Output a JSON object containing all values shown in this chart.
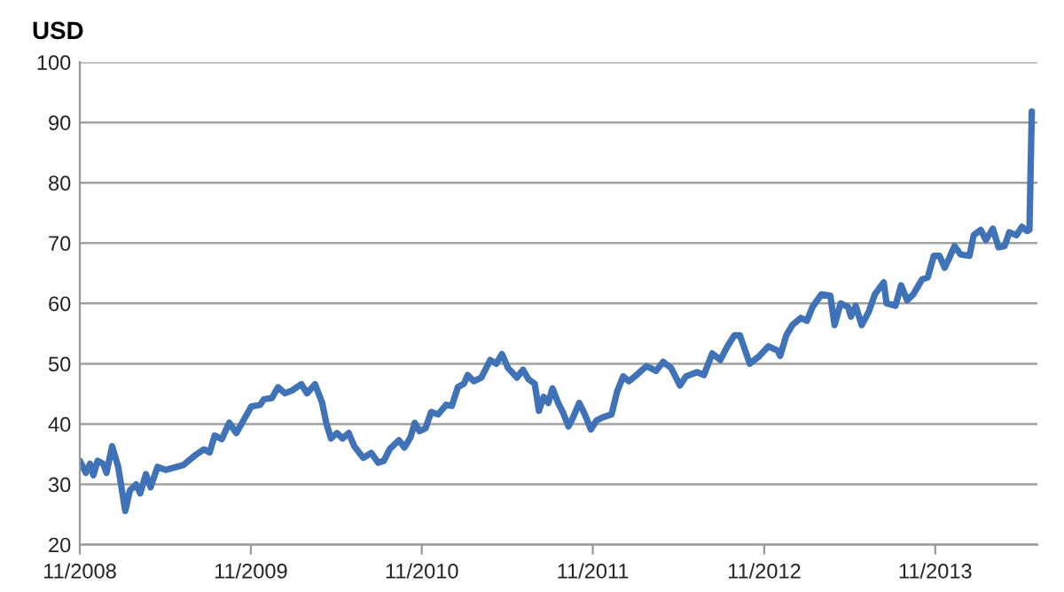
{
  "chart_data": {
    "type": "line",
    "ylabel": "USD",
    "xlim": [
      "2008-11-01",
      "2014-06-07"
    ],
    "ylim": [
      20,
      100
    ],
    "xticks": [
      {
        "value": "2008-11-01",
        "label": "11/2008"
      },
      {
        "value": "2009-11-01",
        "label": "11/2009"
      },
      {
        "value": "2010-11-01",
        "label": "11/2010"
      },
      {
        "value": "2011-11-01",
        "label": "11/2011"
      },
      {
        "value": "2012-11-01",
        "label": "11/2012"
      },
      {
        "value": "2013-11-01",
        "label": "11/2013"
      }
    ],
    "yticks": [
      20,
      30,
      40,
      50,
      60,
      70,
      80,
      90,
      100
    ],
    "grid": "y",
    "marker": "none",
    "line_style": "solid",
    "series": [
      {
        "color": "#3f72b6",
        "x": [
          "2008-11-01",
          "2008-11-14",
          "2008-11-23",
          "2008-11-30",
          "2008-12-09",
          "2008-12-21",
          "2008-12-28",
          "2009-01-09",
          "2009-01-22",
          "2009-02-06",
          "2009-02-16",
          "2009-03-01",
          "2009-03-10",
          "2009-03-22",
          "2009-04-01",
          "2009-04-16",
          "2009-05-03",
          "2009-06-10",
          "2009-07-05",
          "2009-07-24",
          "2009-08-05",
          "2009-08-16",
          "2009-08-31",
          "2009-09-16",
          "2009-10-01",
          "2009-11-02",
          "2009-11-21",
          "2009-11-29",
          "2009-12-16",
          "2009-12-29",
          "2010-01-13",
          "2010-01-29",
          "2010-02-17",
          "2010-03-01",
          "2010-03-18",
          "2010-04-02",
          "2010-04-11",
          "2010-04-21",
          "2010-05-04",
          "2010-05-16",
          "2010-05-29",
          "2010-06-10",
          "2010-06-29",
          "2010-07-16",
          "2010-07-31",
          "2010-08-12",
          "2010-08-25",
          "2010-09-13",
          "2010-09-25",
          "2010-10-08",
          "2010-10-17",
          "2010-10-27",
          "2010-11-09",
          "2010-11-21",
          "2010-12-06",
          "2010-12-23",
          "2011-01-04",
          "2011-01-17",
          "2011-01-30",
          "2011-02-07",
          "2011-02-20",
          "2011-03-08",
          "2011-03-27",
          "2011-04-09",
          "2011-04-21",
          "2011-05-04",
          "2011-05-23",
          "2011-06-05",
          "2011-06-17",
          "2011-06-30",
          "2011-07-09",
          "2011-07-19",
          "2011-07-29",
          "2011-08-07",
          "2011-08-19",
          "2011-08-30",
          "2011-09-10",
          "2011-09-20",
          "2011-10-03",
          "2011-10-15",
          "2011-10-28",
          "2011-11-09",
          "2011-11-22",
          "2011-12-11",
          "2011-12-23",
          "2012-01-05",
          "2012-01-17",
          "2012-01-30",
          "2012-02-12",
          "2012-02-24",
          "2012-03-15",
          "2012-03-30",
          "2012-04-16",
          "2012-05-05",
          "2012-05-18",
          "2012-06-11",
          "2012-06-25",
          "2012-07-13",
          "2012-07-30",
          "2012-08-13",
          "2012-08-29",
          "2012-09-10",
          "2012-10-01",
          "2012-10-22",
          "2012-11-10",
          "2012-11-29",
          "2012-12-05",
          "2012-12-18",
          "2012-12-31",
          "2013-01-18",
          "2013-01-31",
          "2013-02-12",
          "2013-03-03",
          "2013-03-22",
          "2013-03-31",
          "2013-04-13",
          "2013-04-29",
          "2013-05-05",
          "2013-05-15",
          "2013-05-28",
          "2013-06-12",
          "2013-06-25",
          "2013-07-14",
          "2013-07-20",
          "2013-08-08",
          "2013-08-20",
          "2013-09-02",
          "2013-09-15",
          "2013-10-04",
          "2013-10-16",
          "2013-10-29",
          "2013-11-10",
          "2013-11-21",
          "2013-11-29",
          "2013-12-12",
          "2013-12-25",
          "2014-01-13",
          "2014-01-22",
          "2014-02-06",
          "2014-02-17",
          "2014-03-04",
          "2014-03-16",
          "2014-03-29",
          "2014-04-08",
          "2014-04-23",
          "2014-05-05",
          "2014-05-16",
          "2014-05-21",
          "2014-05-26"
        ],
        "values": [
          33.9,
          31.9,
          33.4,
          31.5,
          33.9,
          33.4,
          31.9,
          36.3,
          32.9,
          25.6,
          29,
          30,
          28.5,
          31.7,
          29.5,
          32.9,
          32.4,
          33.2,
          34.8,
          35.8,
          35.3,
          38.1,
          37.5,
          40.2,
          38.5,
          42.9,
          43.2,
          44.1,
          44.3,
          46.1,
          45.1,
          45.6,
          46.6,
          45.1,
          46.6,
          43.6,
          40.2,
          37.6,
          38.5,
          37.6,
          38.5,
          36.3,
          34.4,
          35.2,
          33.6,
          33.9,
          35.9,
          37.3,
          36.1,
          37.8,
          40.2,
          38.8,
          39.3,
          42,
          41.6,
          43.2,
          43,
          46.1,
          46.7,
          48.1,
          47.1,
          47.7,
          50.6,
          50,
          51.6,
          49.3,
          47.7,
          49,
          47.4,
          46.7,
          42.2,
          44.5,
          43.5,
          45.9,
          43.5,
          41.8,
          39.6,
          41.1,
          43.5,
          41.6,
          39.1,
          40.6,
          41.1,
          41.6,
          45.4,
          47.9,
          47.1,
          47.9,
          48.8,
          49.6,
          48.8,
          50.3,
          49.3,
          46.4,
          47.9,
          48.6,
          48.1,
          51.7,
          50.6,
          52.7,
          54.7,
          54.7,
          50,
          51.3,
          52.9,
          52.2,
          51.3,
          54.7,
          56.4,
          57.6,
          57.1,
          59.4,
          61.5,
          61.3,
          56.4,
          60,
          59.4,
          57.8,
          59.6,
          56.4,
          58.6,
          61.5,
          63.5,
          60,
          59.6,
          63,
          60.5,
          61.5,
          64,
          64.3,
          67.9,
          67.9,
          65.9,
          67.2,
          69.5,
          68.1,
          67.9,
          71.3,
          72.2,
          70.5,
          72.4,
          69.3,
          69.5,
          71.8,
          71.3,
          72.7,
          72,
          72.2,
          91.8
        ]
      }
    ]
  }
}
